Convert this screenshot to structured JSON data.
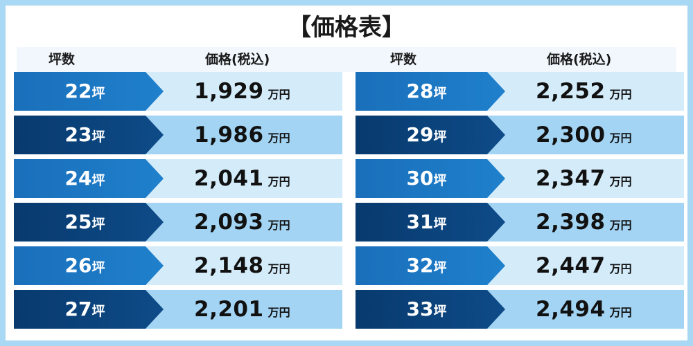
{
  "title": "【価格表】",
  "headers": {
    "size": "坪数",
    "price": "価格(税込)"
  },
  "unit_size": "坪",
  "unit_price": "万円",
  "colors": {
    "border": "#a9d8f5",
    "tag_light": "#1f80cc",
    "tag_dark": "#0e4b88",
    "row_light": "#d4ebfa",
    "row_dark": "#a3d4f3"
  },
  "left_rows": [
    {
      "size": "22",
      "price": "1,929"
    },
    {
      "size": "23",
      "price": "1,986"
    },
    {
      "size": "24",
      "price": "2,041"
    },
    {
      "size": "25",
      "price": "2,093"
    },
    {
      "size": "26",
      "price": "2,148"
    },
    {
      "size": "27",
      "price": "2,201"
    }
  ],
  "right_rows": [
    {
      "size": "28",
      "price": "2,252"
    },
    {
      "size": "29",
      "price": "2,300"
    },
    {
      "size": "30",
      "price": "2,347"
    },
    {
      "size": "31",
      "price": "2,398"
    },
    {
      "size": "32",
      "price": "2,447"
    },
    {
      "size": "33",
      "price": "2,494"
    }
  ]
}
